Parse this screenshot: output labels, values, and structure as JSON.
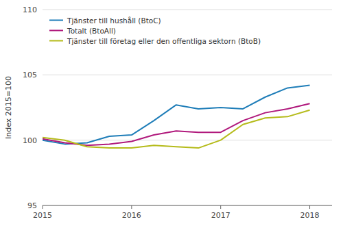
{
  "chart_data": {
    "type": "line",
    "ylabel": "Index 2015=100",
    "x": [
      2015.0,
      2015.25,
      2015.5,
      2015.75,
      2016.0,
      2016.25,
      2016.5,
      2016.75,
      2017.0,
      2017.25,
      2017.5,
      2017.75,
      2018.0
    ],
    "xlim": [
      2015.0,
      2018.25
    ],
    "xticks": [
      2015,
      2016,
      2017,
      2018
    ],
    "ylim": [
      95,
      110
    ],
    "yticks": [
      95,
      100,
      105,
      110
    ],
    "grid": true,
    "legend": "upper-left",
    "series": [
      {
        "name": "Tjänster till hushåll (BtoC)",
        "color": "#1e7db8",
        "values": [
          100.0,
          99.7,
          99.8,
          100.3,
          100.4,
          101.5,
          102.7,
          102.4,
          102.5,
          102.4,
          103.3,
          104.0,
          104.2
        ]
      },
      {
        "name": "Totalt (BtoAll)",
        "color": "#b0197c",
        "values": [
          100.1,
          99.8,
          99.6,
          99.7,
          99.9,
          100.4,
          100.7,
          100.6,
          100.6,
          101.5,
          102.1,
          102.4,
          102.8
        ]
      },
      {
        "name": "Tjänster till företag eller den offentliga sektorn (BtoB)",
        "color": "#b5bb1a",
        "values": [
          100.2,
          100.0,
          99.5,
          99.4,
          99.4,
          99.6,
          99.5,
          99.4,
          100.0,
          101.2,
          101.7,
          101.8,
          102.3
        ]
      }
    ]
  }
}
